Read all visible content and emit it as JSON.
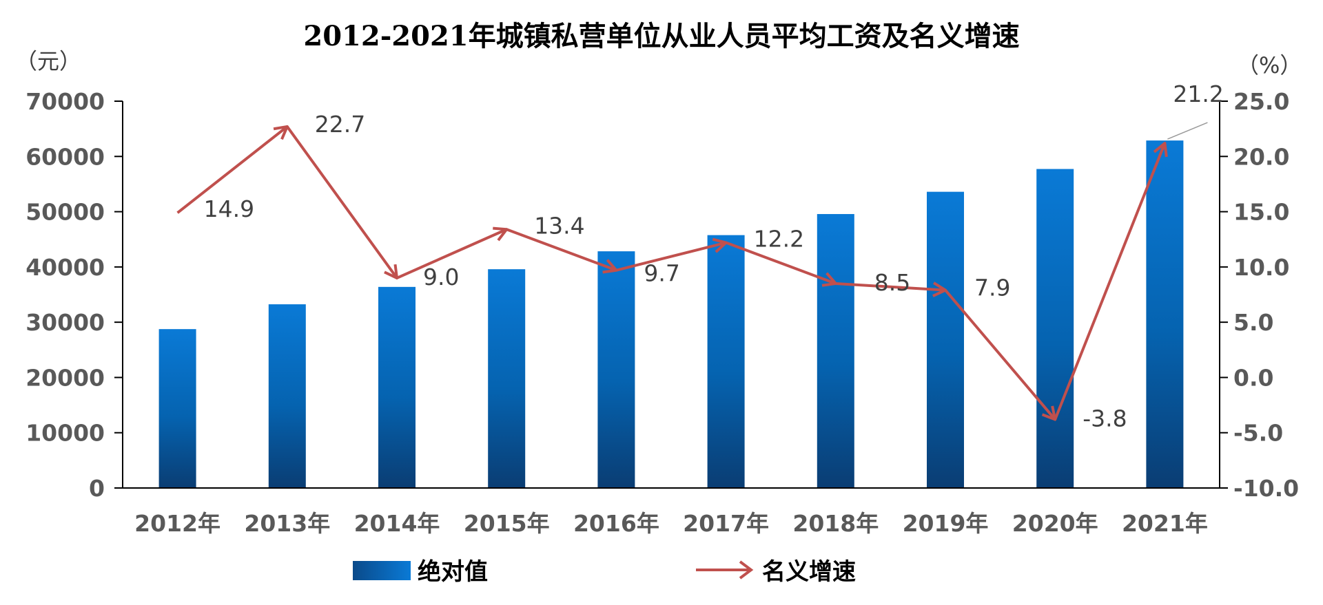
{
  "chart_data": {
    "type": "bar",
    "title": "2012-2021年城镇私营单位从业人员平均工资及名义增速",
    "categories": [
      "2012年",
      "2013年",
      "2014年",
      "2015年",
      "2016年",
      "2017年",
      "2018年",
      "2019年",
      "2020年",
      "2021年"
    ],
    "left_axis": {
      "unit_label": "（元）",
      "ylim": [
        0,
        70000
      ],
      "ticks": [
        "0",
        "10000",
        "20000",
        "30000",
        "40000",
        "50000",
        "60000",
        "70000"
      ]
    },
    "right_axis": {
      "unit_label": "（%）",
      "ylim": [
        -10,
        25
      ],
      "ticks": [
        "-10.0",
        "-5.0",
        "0.0",
        "5.0",
        "10.0",
        "15.0",
        "20.0",
        "25.0"
      ]
    },
    "series": [
      {
        "name": "绝对值",
        "type": "bar",
        "axis": "left",
        "color": "#0070C0",
        "values": [
          28752,
          33244,
          36390,
          39589,
          42833,
          45761,
          49575,
          53604,
          57727,
          62884
        ]
      },
      {
        "name": "名义增速",
        "type": "line",
        "axis": "right",
        "color": "#C0504D",
        "values": [
          14.9,
          22.7,
          9.0,
          13.4,
          9.7,
          12.2,
          8.5,
          7.9,
          -3.8,
          21.2
        ],
        "labels": [
          "14.9",
          "22.7",
          "9.0",
          "13.4",
          "9.7",
          "12.2",
          "8.5",
          "7.9",
          "-3.8",
          "21.2"
        ]
      }
    ],
    "grid": false,
    "legend": "bottom"
  }
}
